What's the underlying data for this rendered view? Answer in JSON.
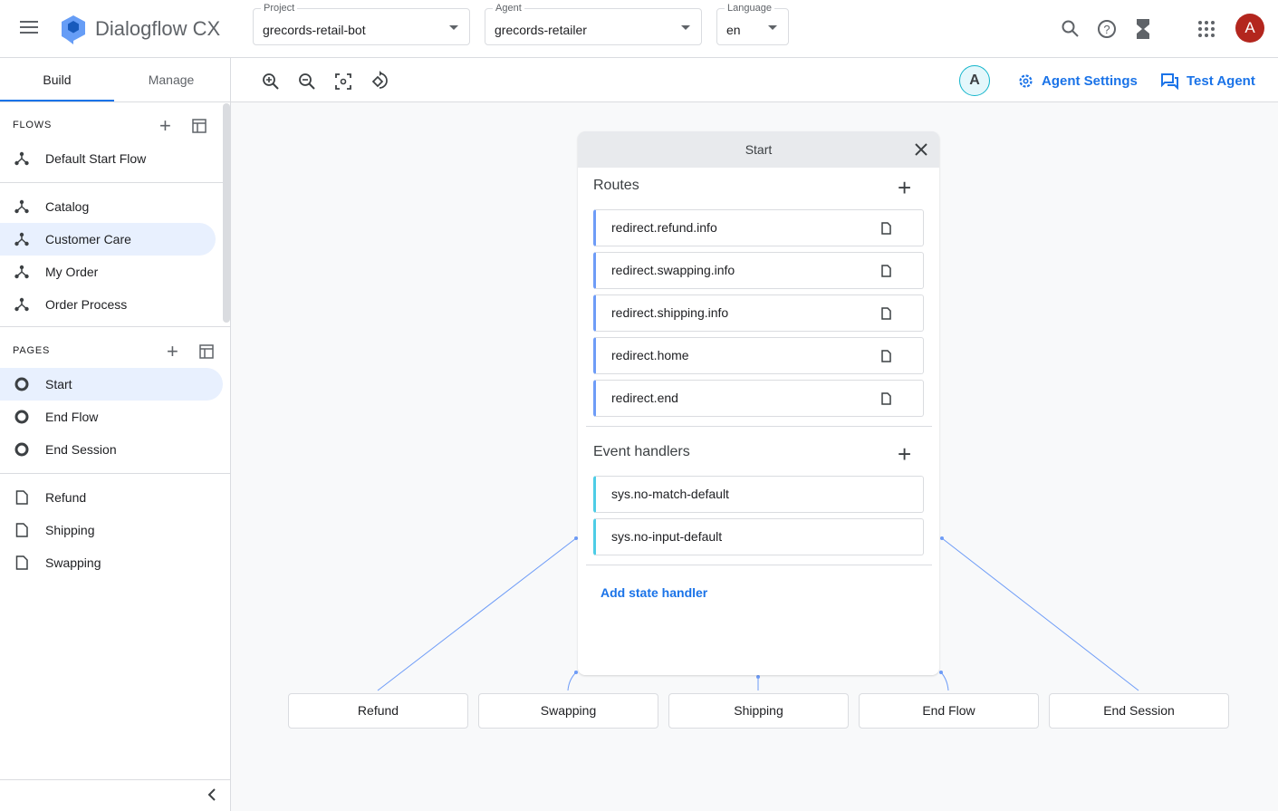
{
  "header": {
    "app_title": "Dialogflow CX",
    "project": {
      "label": "Project",
      "value": "grecords-retail-bot"
    },
    "agent": {
      "label": "Agent",
      "value": "grecords-retailer"
    },
    "language": {
      "label": "Language",
      "value": "en"
    },
    "avatar": "A"
  },
  "toolbar": {
    "agent_badge": "A",
    "agent_settings": "Agent Settings",
    "test_agent": "Test Agent"
  },
  "sidebar": {
    "tabs": [
      "Build",
      "Manage"
    ],
    "flows_label": "FLOWS",
    "flows": [
      "Default Start Flow",
      "Catalog",
      "Customer Care",
      "My Order",
      "Order Process"
    ],
    "pages_label": "PAGES",
    "pages": [
      "Start",
      "End Flow",
      "End Session"
    ],
    "other_pages": [
      "Refund",
      "Shipping",
      "Swapping"
    ]
  },
  "panel": {
    "title": "Start",
    "routes_label": "Routes",
    "routes": [
      "redirect.refund.info",
      "redirect.swapping.info",
      "redirect.shipping.info",
      "redirect.home",
      "redirect.end"
    ],
    "events_label": "Event handlers",
    "events": [
      "sys.no-match-default",
      "sys.no-input-default"
    ],
    "add_state": "Add state handler"
  },
  "nodes": [
    "Refund",
    "Swapping",
    "Shipping",
    "End Flow",
    "End Session"
  ],
  "colors": {
    "accent": "#1a73e8",
    "route": "#6e9cf7",
    "event": "#4ecde6",
    "avatar": "#b3261e"
  }
}
